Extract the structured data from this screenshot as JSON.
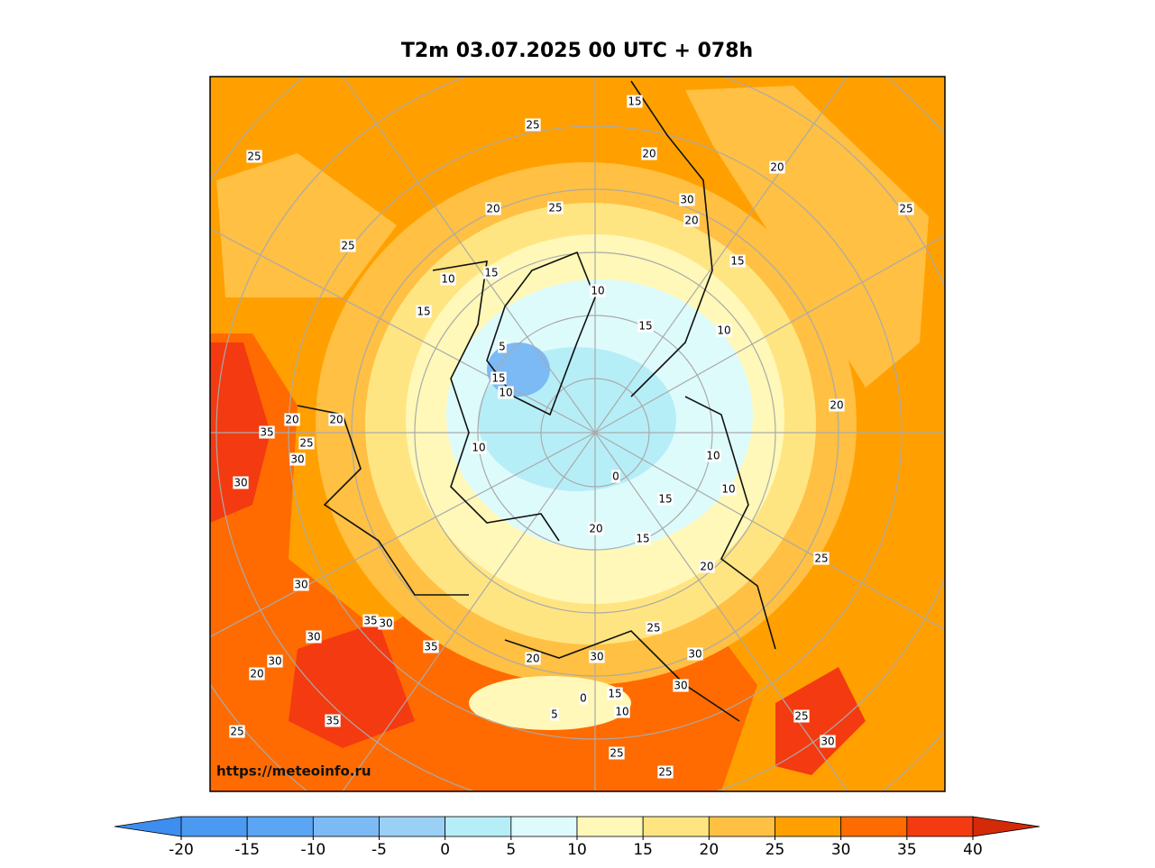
{
  "title": "T2m 03.07.2025 00 UTC + 078h",
  "watermark": "https://meteoinfo.ru",
  "colorbar": {
    "ticks": [
      -20,
      -15,
      -10,
      -5,
      0,
      5,
      10,
      15,
      20,
      25,
      30,
      35,
      40
    ],
    "under_color": "#3d8ef0",
    "over_color": "#d42a08",
    "colors": [
      "#4a9af2",
      "#5aa6f4",
      "#7cbaf6",
      "#9ad0f6",
      "#b6eef8",
      "#defbfc",
      "#fff8b8",
      "#ffe582",
      "#ffc043",
      "#ffa000",
      "#ff6b00",
      "#f43a10"
    ]
  },
  "contour_labels": [
    25,
    25,
    25,
    20,
    25,
    15,
    20,
    20,
    25,
    15,
    30,
    20,
    10,
    15,
    15,
    10,
    15,
    10,
    5,
    15,
    10,
    10,
    20,
    35,
    20,
    30,
    30,
    20,
    25,
    10,
    0,
    10,
    15,
    15,
    20,
    20,
    25,
    30,
    35,
    30,
    35,
    30,
    30,
    30,
    25,
    20,
    30,
    35,
    25,
    15,
    10,
    25,
    25,
    20,
    5,
    0,
    30,
    30,
    25
  ]
}
